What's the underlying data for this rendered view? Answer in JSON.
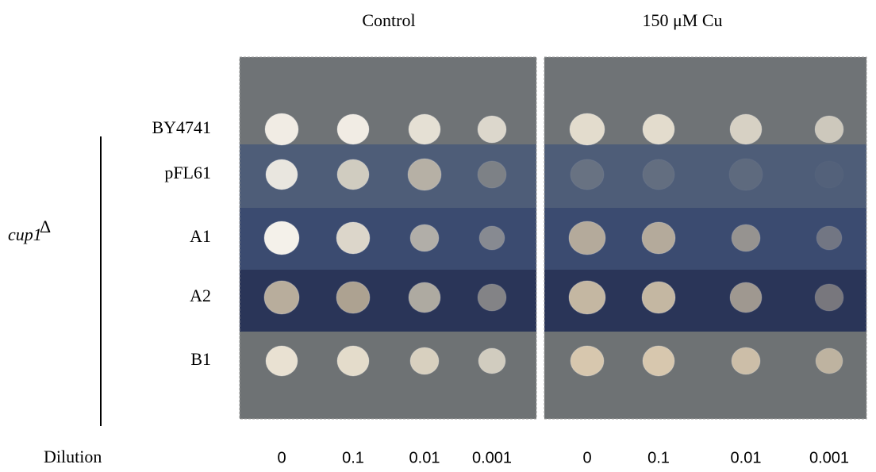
{
  "panels": [
    {
      "title": "Control"
    },
    {
      "title": "150 μM Cu"
    }
  ],
  "rows": [
    {
      "label": "BY4741"
    },
    {
      "label": "pFL61"
    },
    {
      "label": "A1"
    },
    {
      "label": "A2"
    },
    {
      "label": "B1"
    }
  ],
  "group": {
    "label": "cup1",
    "superscript": "Δ"
  },
  "dilution": {
    "label": "Dilution",
    "values": [
      "0",
      "0.1",
      "0.01",
      "0.001"
    ]
  }
}
